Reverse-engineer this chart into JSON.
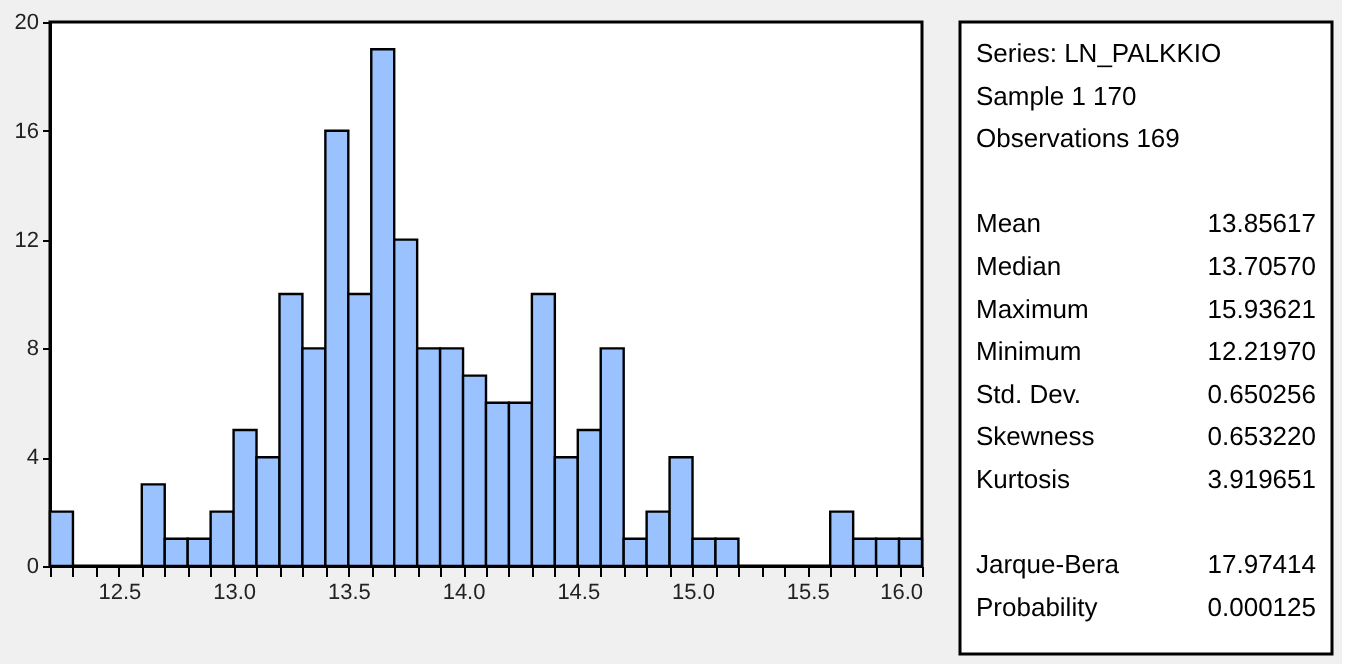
{
  "chart_data": [
    {
      "type": "histogram",
      "bins": [
        12.2,
        12.3,
        12.4,
        12.5,
        12.6,
        12.7,
        12.8,
        12.9,
        13.0,
        13.1,
        13.2,
        13.3,
        13.4,
        13.5,
        13.6,
        13.7,
        13.8,
        13.9,
        14.0,
        14.1,
        14.2,
        14.3,
        14.4,
        14.5,
        14.6,
        14.7,
        14.8,
        14.9,
        15.0,
        15.1,
        15.2,
        15.3,
        15.4,
        15.5,
        15.6,
        15.7,
        15.8,
        15.9,
        16.0
      ],
      "values": [
        2,
        0,
        0,
        0,
        3,
        1,
        1,
        2,
        5,
        4,
        10,
        8,
        16,
        10,
        19,
        12,
        8,
        8,
        7,
        6,
        6,
        10,
        4,
        5,
        8,
        1,
        2,
        4,
        1,
        1,
        0,
        0,
        0,
        0,
        2,
        1,
        1,
        1
      ],
      "color": "#99c2ff",
      "xlim": [
        12.2,
        16.0
      ],
      "xticks": [
        {
          "value": 12.2,
          "label": null
        },
        {
          "value": 12.3,
          "label": null
        },
        {
          "value": 12.4,
          "label": null
        },
        {
          "value": 12.5,
          "label": "12.5"
        },
        {
          "value": 12.6,
          "label": null
        },
        {
          "value": 12.7,
          "label": null
        },
        {
          "value": 12.8,
          "label": null
        },
        {
          "value": 12.9,
          "label": null
        },
        {
          "value": 13.0,
          "label": "13.0"
        },
        {
          "value": 13.1,
          "label": null
        },
        {
          "value": 13.2,
          "label": null
        },
        {
          "value": 13.3,
          "label": null
        },
        {
          "value": 13.4,
          "label": null
        },
        {
          "value": 13.5,
          "label": "13.5"
        },
        {
          "value": 13.6,
          "label": null
        },
        {
          "value": 13.7,
          "label": null
        },
        {
          "value": 13.8,
          "label": null
        },
        {
          "value": 13.9,
          "label": null
        },
        {
          "value": 14.0,
          "label": "14.0"
        },
        {
          "value": 14.1,
          "label": null
        },
        {
          "value": 14.2,
          "label": null
        },
        {
          "value": 14.3,
          "label": null
        },
        {
          "value": 14.4,
          "label": null
        },
        {
          "value": 14.5,
          "label": "14.5"
        },
        {
          "value": 14.6,
          "label": null
        },
        {
          "value": 14.7,
          "label": null
        },
        {
          "value": 14.8,
          "label": null
        },
        {
          "value": 14.9,
          "label": null
        },
        {
          "value": 15.0,
          "label": "15.0"
        },
        {
          "value": 15.1,
          "label": null
        },
        {
          "value": 15.2,
          "label": null
        },
        {
          "value": 15.3,
          "label": null
        },
        {
          "value": 15.4,
          "label": null
        },
        {
          "value": 15.5,
          "label": "15.5"
        },
        {
          "value": 15.6,
          "label": null
        },
        {
          "value": 15.7,
          "label": null
        },
        {
          "value": 15.8,
          "label": null
        },
        {
          "value": 15.9,
          "label": null
        },
        {
          "value": 16.0,
          "label": "16.0"
        }
      ],
      "ylim": [
        0,
        20
      ],
      "yticks": [
        0,
        4,
        8,
        12,
        16,
        20
      ],
      "grid": false
    },
    {
      "type": "other",
      "annotations": [
        "Series: LN_PALKKIO",
        "Sample 1 170",
        "Observations 169"
      ],
      "categories": [
        "Mean",
        "Median",
        "Maximum",
        "Minimum",
        "Std. Dev.",
        "Skewness",
        "Kurtosis",
        null,
        "Jarque-Bera",
        "Probability"
      ],
      "values": [
        13.85617,
        13.7057,
        15.93621,
        12.2197,
        0.650256,
        0.65322,
        3.919651,
        null,
        17.97414,
        0.000125
      ],
      "value_labels": [
        "13.85617",
        "13.70570",
        "15.93621",
        "12.21970",
        "0.650256",
        "0.653220",
        "3.919651",
        null,
        "17.97414",
        "0.000125"
      ]
    }
  ]
}
